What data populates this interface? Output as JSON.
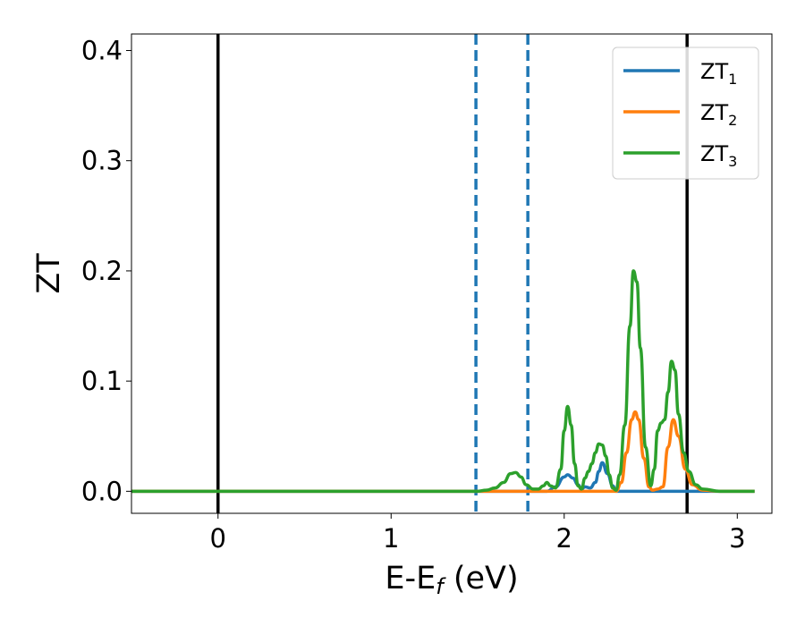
{
  "chart_data": {
    "type": "line",
    "xlabel": "E-E",
    "xlabel_sub": "f",
    "xlabel_unit": "(eV)",
    "ylabel": "ZT",
    "xlim": [
      -0.5,
      3.2
    ],
    "ylim": [
      -0.02,
      0.415
    ],
    "xticks": [
      0,
      1,
      2,
      3
    ],
    "yticks": [
      0.0,
      0.1,
      0.2,
      0.3,
      0.4
    ],
    "xtick_labels": [
      "0",
      "1",
      "2",
      "3"
    ],
    "ytick_labels": [
      "0.0",
      "0.1",
      "0.2",
      "0.3",
      "0.4"
    ],
    "grid": false,
    "legend_position": "top-right",
    "vlines": [
      {
        "x": 0.0,
        "style": "solid",
        "color": "#000000"
      },
      {
        "x": 2.71,
        "style": "solid",
        "color": "#000000"
      },
      {
        "x": 1.49,
        "style": "dashed",
        "color": "#1f77b4"
      },
      {
        "x": 1.79,
        "style": "dashed",
        "color": "#1f77b4"
      }
    ],
    "series": [
      {
        "name": "ZT",
        "sub": "1",
        "color": "#1f77b4",
        "x": [
          -0.5,
          1.9,
          1.95,
          2.0,
          2.02,
          2.05,
          2.08,
          2.1,
          2.12,
          2.15,
          2.18,
          2.2,
          2.22,
          2.25,
          2.28,
          2.3,
          3.1
        ],
        "y": [
          0,
          0,
          0.004,
          0.013,
          0.015,
          0.012,
          0.006,
          0.002,
          0.004,
          0.003,
          0.008,
          0.018,
          0.026,
          0.016,
          0.005,
          0,
          0
        ]
      },
      {
        "name": "ZT",
        "sub": "2",
        "color": "#ff7f0e",
        "x": [
          -0.5,
          2.3,
          2.33,
          2.36,
          2.39,
          2.41,
          2.43,
          2.46,
          2.49,
          2.51,
          2.54,
          2.57,
          2.6,
          2.63,
          2.66,
          2.7,
          2.74,
          2.8,
          2.9,
          3.1
        ],
        "y": [
          0,
          0,
          0.008,
          0.035,
          0.065,
          0.072,
          0.065,
          0.03,
          0.004,
          0.001,
          0.002,
          0.004,
          0.04,
          0.065,
          0.05,
          0.02,
          0.006,
          0.001,
          0,
          0
        ]
      },
      {
        "name": "ZT",
        "sub": "3",
        "color": "#2ca02c",
        "x": [
          -0.5,
          1.5,
          1.55,
          1.6,
          1.65,
          1.69,
          1.72,
          1.75,
          1.78,
          1.82,
          1.85,
          1.88,
          1.9,
          1.92,
          1.95,
          1.98,
          2.0,
          2.02,
          2.04,
          2.06,
          2.08,
          2.1,
          2.12,
          2.14,
          2.16,
          2.18,
          2.2,
          2.22,
          2.24,
          2.26,
          2.28,
          2.3,
          2.32,
          2.35,
          2.38,
          2.4,
          2.42,
          2.44,
          2.47,
          2.5,
          2.52,
          2.54,
          2.56,
          2.58,
          2.6,
          2.62,
          2.64,
          2.66,
          2.69,
          2.72,
          2.76,
          2.8,
          2.9,
          3.1
        ],
        "y": [
          0,
          0,
          0.001,
          0.003,
          0.008,
          0.016,
          0.017,
          0.013,
          0.006,
          0.002,
          0.002,
          0.005,
          0.008,
          0.005,
          0.003,
          0.02,
          0.055,
          0.077,
          0.06,
          0.025,
          0.005,
          0.002,
          0.012,
          0.018,
          0.025,
          0.035,
          0.043,
          0.042,
          0.032,
          0.015,
          0.003,
          0.001,
          0.015,
          0.06,
          0.15,
          0.2,
          0.19,
          0.13,
          0.04,
          0.005,
          0.02,
          0.055,
          0.062,
          0.065,
          0.09,
          0.118,
          0.11,
          0.07,
          0.035,
          0.018,
          0.006,
          0.002,
          0,
          0
        ]
      }
    ]
  }
}
